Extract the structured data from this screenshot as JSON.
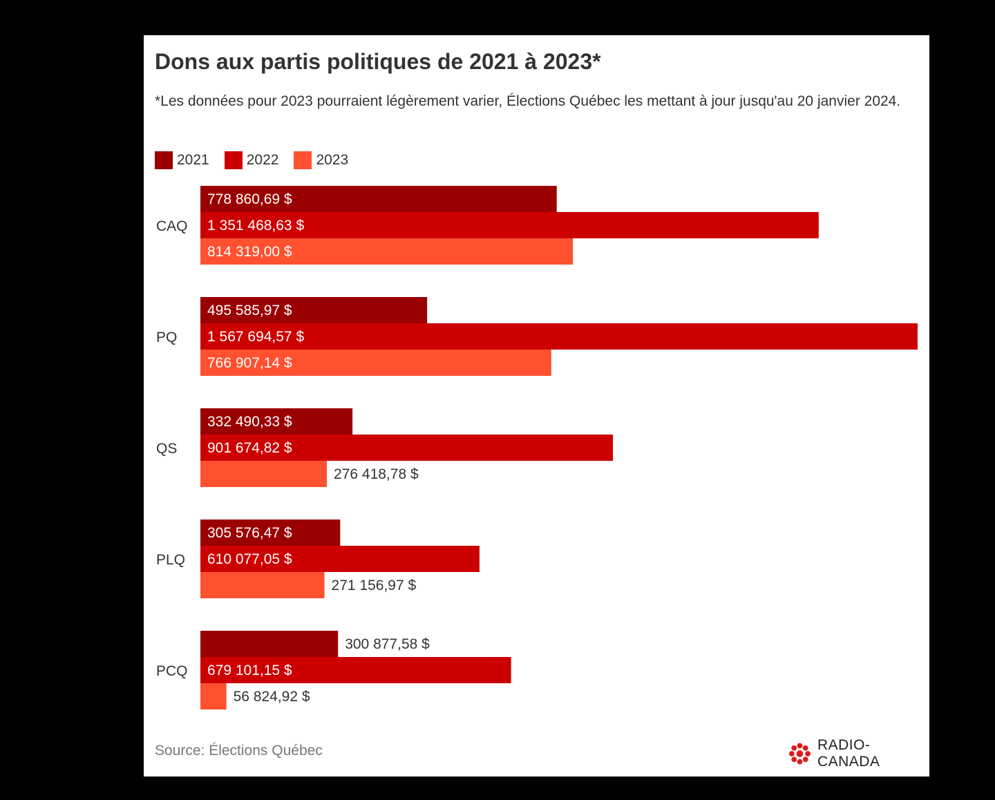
{
  "title": "Dons aux partis politiques de 2021 à 2023*",
  "subtitle": "*Les données pour 2023 pourraient légèrement varier, Élections Québec les mettant à jour jusqu'au 20 janvier 2024.",
  "legend": [
    {
      "label": "2021",
      "color": "#9b0000"
    },
    {
      "label": "2022",
      "color": "#cc0000"
    },
    {
      "label": "2023",
      "color": "#ff5030"
    }
  ],
  "source": "Source: Élections Québec",
  "logo": {
    "text": "RADIO-CANADA",
    "icon": "radio-canada-gem-icon",
    "color": "#e01a1a"
  },
  "chart_data": {
    "type": "bar",
    "orientation": "horizontal",
    "categories": [
      "CAQ",
      "PQ",
      "QS",
      "PLQ",
      "PCQ"
    ],
    "series": [
      {
        "name": "2021",
        "color": "#9b0000",
        "values": [
          778860.69,
          495585.97,
          332490.33,
          305576.47,
          300877.58
        ],
        "labels": [
          "778 860,69 $",
          "495 585,97 $",
          "332 490,33 $",
          "305 576,47 $",
          "300 877,58 $"
        ]
      },
      {
        "name": "2022",
        "color": "#cc0000",
        "values": [
          1351468.63,
          1567694.57,
          901674.82,
          610077.05,
          679101.15
        ],
        "labels": [
          "1 351 468,63 $",
          "1 567 694,57 $",
          "901 674,82 $",
          "610 077,05 $",
          "679 101,15 $"
        ]
      },
      {
        "name": "2023",
        "color": "#ff5030",
        "values": [
          814319.0,
          766907.14,
          276418.78,
          271156.97,
          56824.92
        ],
        "labels": [
          "814 319,00 $",
          "766 907,14 $",
          "276 418,78 $",
          "271 156,97 $",
          "56 824,92 $"
        ]
      }
    ],
    "title": "Dons aux partis politiques de 2021 à 2023*",
    "xlabel": "",
    "ylabel": "",
    "xlim": [
      0,
      1567694.57
    ],
    "grid": false,
    "legend_position": "top-left"
  }
}
